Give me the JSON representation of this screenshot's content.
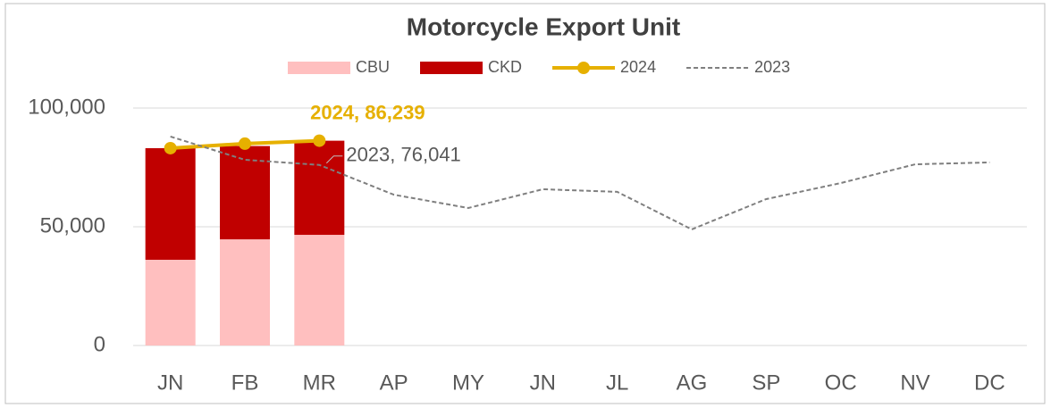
{
  "chart_data": {
    "type": "bar_line",
    "title": "Motorcycle Export Unit",
    "categories": [
      "JN",
      "FB",
      "MR",
      "AP",
      "MY",
      "JN",
      "JL",
      "AG",
      "SP",
      "OC",
      "NV",
      "DC"
    ],
    "series": [
      {
        "name": "CBU",
        "kind": "bar",
        "color": "#ffbfbf",
        "values": [
          36100,
          44700,
          46600,
          null,
          null,
          null,
          null,
          null,
          null,
          null,
          null,
          null
        ]
      },
      {
        "name": "CKD",
        "kind": "bar",
        "color": "#c00000",
        "values": [
          47000,
          39300,
          39639,
          null,
          null,
          null,
          null,
          null,
          null,
          null,
          null,
          null
        ]
      },
      {
        "name": "2024",
        "kind": "line",
        "color": "#e6b000",
        "values": [
          83100,
          85000,
          86239,
          null,
          null,
          null,
          null,
          null,
          null,
          null,
          null,
          null
        ],
        "value_labels": [
          null,
          null,
          "2024, 86,239",
          null,
          null,
          null,
          null,
          null,
          null,
          null,
          null,
          null
        ]
      },
      {
        "name": "2023",
        "kind": "dashed-line",
        "color": "#7f7f7f",
        "values": [
          88000,
          78200,
          76041,
          63500,
          57900,
          65800,
          64700,
          48900,
          61650,
          68400,
          76300,
          77100
        ],
        "value_labels": [
          null,
          null,
          "2023, 76,041",
          null,
          null,
          null,
          null,
          null,
          null,
          null,
          null,
          null
        ]
      }
    ],
    "ylim": [
      0,
      100000
    ],
    "yticks": [
      0,
      {
        "value": 50000,
        "label": "50,000"
      },
      {
        "value": 100000,
        "label": "100,000"
      }
    ],
    "grid": true,
    "legend": "top"
  }
}
